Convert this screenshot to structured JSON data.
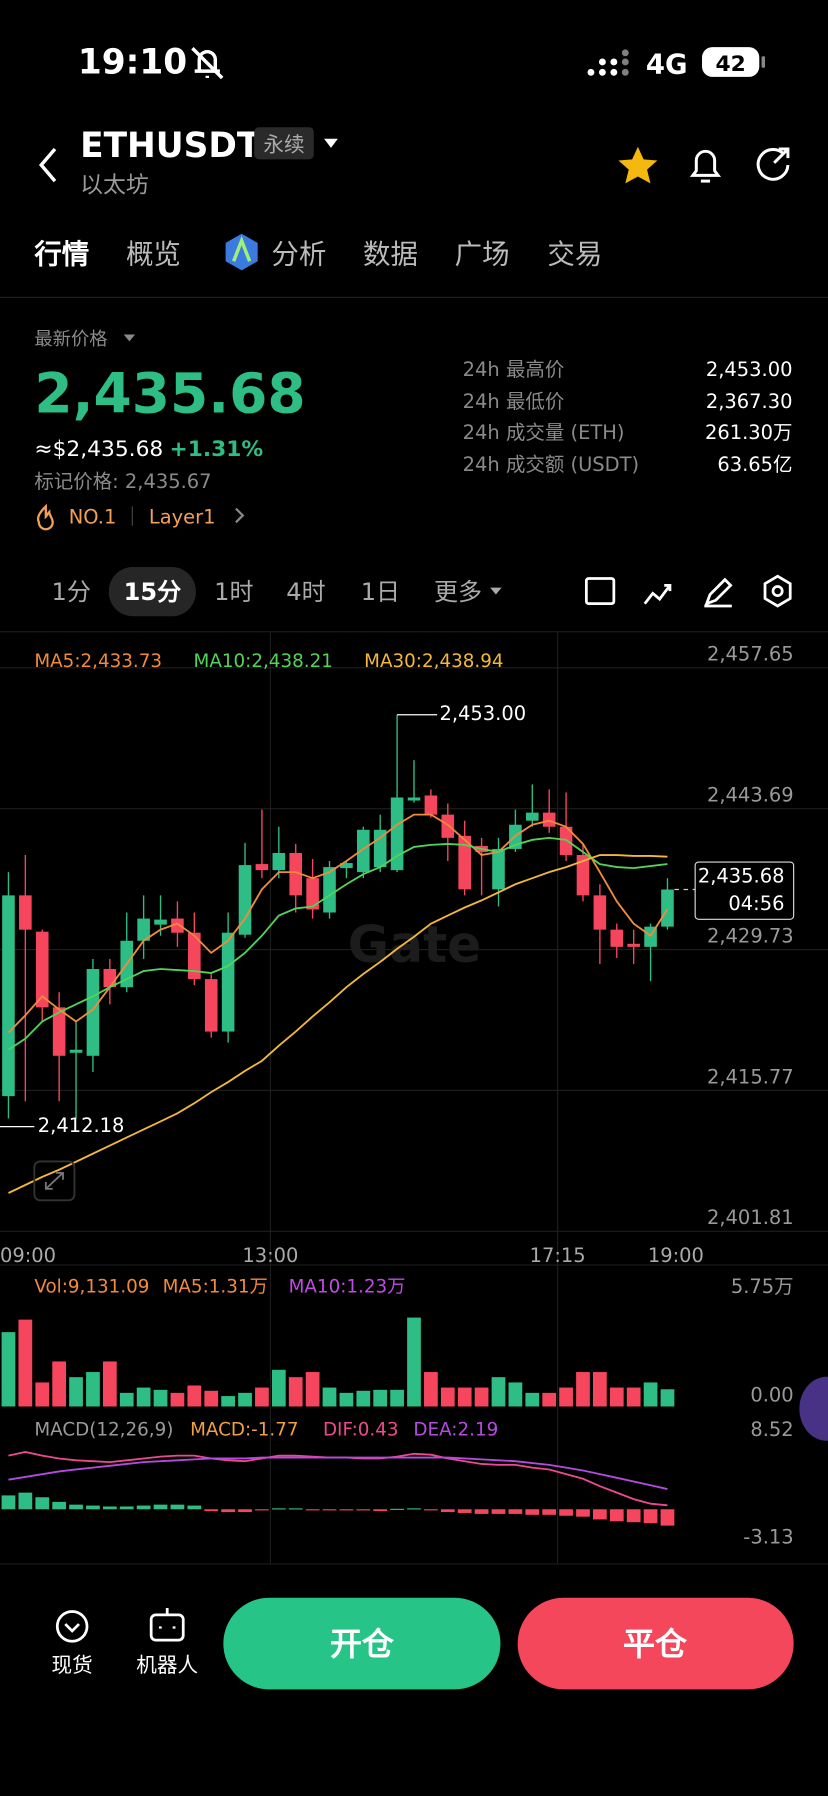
{
  "status_bar": {
    "time": "19:10",
    "network": "4G",
    "battery": "42"
  },
  "header": {
    "symbol": "ETHUSDT",
    "badge": "永续",
    "name": "以太坊"
  },
  "tabs": [
    "行情",
    "概览",
    "分析",
    "数据",
    "广场",
    "交易"
  ],
  "price_panel": {
    "label": "最新价格",
    "price": "2,435.68",
    "usd_price": "≈$2,435.68",
    "change": "+1.31%",
    "mark_price": "标记价格: 2,435.67",
    "tags": [
      "NO.1",
      "Layer1"
    ],
    "stats": [
      {
        "label": "24h 最高价",
        "value": "2,453.00"
      },
      {
        "label": "24h 最低价",
        "value": "2,367.30"
      },
      {
        "label": "24h 成交量 (ETH)",
        "value": "261.30万"
      },
      {
        "label": "24h 成交额 (USDT)",
        "value": "63.65亿"
      }
    ]
  },
  "intervals": [
    "1分",
    "15分",
    "1时",
    "4时",
    "1日",
    "更多"
  ],
  "chart_data": [
    {
      "type": "candlestick",
      "watermark": "Gate",
      "up_color": "#2ebd85",
      "down_color": "#f6465d",
      "x": [
        9.125,
        9.375,
        9.625,
        9.875,
        10.125,
        10.375,
        10.625,
        10.875,
        11.125,
        11.375,
        11.625,
        11.875,
        12.125,
        12.375,
        12.625,
        12.875,
        13.125,
        13.375,
        13.625,
        13.875,
        14.125,
        14.375,
        14.625,
        14.875,
        15.125,
        15.375,
        15.625,
        15.875,
        16.125,
        16.375,
        16.625,
        16.875,
        17.125,
        17.375,
        17.625,
        17.875,
        18.125,
        18.375,
        18.625,
        18.875
      ],
      "open": [
        2415.2,
        2435.1,
        2431.5,
        2424.0,
        2419.5,
        2419.2,
        2427.8,
        2426.0,
        2430.6,
        2432.2,
        2432.8,
        2431.4,
        2426.8,
        2421.6,
        2431.2,
        2438.2,
        2437.6,
        2439.3,
        2436.8,
        2433.4,
        2437.8,
        2437.4,
        2437.9,
        2437.6,
        2444.5,
        2445.0,
        2443.1,
        2441.0,
        2440.0,
        2435.7,
        2439.7,
        2442.5,
        2443.3,
        2441.9,
        2439.1,
        2435.1,
        2431.7,
        2430.3,
        2430.0,
        2432.0
      ],
      "high": [
        2437.4,
        2439.1,
        2431.7,
        2425.5,
        2422.6,
        2428.8,
        2428.8,
        2433.4,
        2435.1,
        2435.1,
        2434.5,
        2433.4,
        2427.3,
        2433.4,
        2440.3,
        2443.6,
        2441.9,
        2440.2,
        2438.7,
        2438.5,
        2438.5,
        2441.9,
        2443.1,
        2453.0,
        2448.5,
        2445.6,
        2444.2,
        2442.5,
        2440.8,
        2440.8,
        2443.6,
        2446.1,
        2445.6,
        2445.3,
        2440.2,
        2436.2,
        2432.3,
        2431.7,
        2432.3,
        2436.8
      ],
      "low": [
        2413.0,
        2414.7,
        2422.6,
        2414.7,
        2413.0,
        2417.6,
        2424.3,
        2425.5,
        2428.8,
        2431.1,
        2430.0,
        2426.2,
        2421.0,
        2420.5,
        2430.9,
        2436.8,
        2436.8,
        2433.4,
        2432.8,
        2432.8,
        2436.8,
        2436.8,
        2437.4,
        2437.4,
        2444.3,
        2442.8,
        2438.5,
        2435.1,
        2435.1,
        2434.0,
        2439.4,
        2441.9,
        2441.3,
        2438.5,
        2434.5,
        2428.3,
        2428.9,
        2428.3,
        2426.6,
        2431.7
      ],
      "close": [
        2435.1,
        2431.7,
        2424.0,
        2419.2,
        2419.8,
        2427.8,
        2426.0,
        2430.6,
        2432.8,
        2432.7,
        2431.4,
        2426.8,
        2421.6,
        2431.4,
        2438.1,
        2437.6,
        2439.3,
        2435.1,
        2433.7,
        2437.9,
        2438.3,
        2441.6,
        2441.6,
        2444.8,
        2444.8,
        2443.1,
        2440.8,
        2435.7,
        2439.4,
        2439.7,
        2442.1,
        2443.3,
        2441.9,
        2439.1,
        2435.1,
        2431.7,
        2430.0,
        2430.0,
        2432.0,
        2435.68
      ],
      "series": [
        {
          "name": "MA5:2,433.73",
          "color": "#f08a3c",
          "values": [
            2421.5,
            2423.2,
            2425.1,
            2423.8,
            2422.6,
            2423.8,
            2426.0,
            2428.3,
            2430.6,
            2431.7,
            2432.3,
            2431.1,
            2429.4,
            2430.6,
            2432.8,
            2435.7,
            2437.4,
            2437.4,
            2436.8,
            2437.4,
            2438.5,
            2439.7,
            2440.8,
            2442.1,
            2443.1,
            2443.1,
            2442.1,
            2440.6,
            2439.1,
            2439.4,
            2441.0,
            2442.1,
            2442.5,
            2441.9,
            2440.2,
            2437.4,
            2434.5,
            2432.3,
            2431.1,
            2433.73
          ]
        },
        {
          "name": "MA10:2,438.21",
          "color": "#52d35a",
          "values": [
            2419.8,
            2420.9,
            2422.6,
            2423.5,
            2424.3,
            2425.1,
            2426.0,
            2426.8,
            2427.6,
            2427.8,
            2427.7,
            2427.6,
            2427.4,
            2428.1,
            2429.4,
            2431.1,
            2433.1,
            2433.8,
            2434.0,
            2435.1,
            2436.2,
            2437.2,
            2437.9,
            2439.0,
            2439.9,
            2440.1,
            2440.2,
            2440.1,
            2439.7,
            2439.4,
            2440.1,
            2440.6,
            2440.8,
            2440.6,
            2439.4,
            2438.2,
            2437.9,
            2437.8,
            2438.0,
            2438.21
          ]
        },
        {
          "name": "MA30:2,438.94",
          "color": "#f3b83a",
          "values": [
            2405.6,
            2406.4,
            2407.2,
            2407.9,
            2408.7,
            2409.5,
            2410.3,
            2411.1,
            2411.9,
            2412.7,
            2413.5,
            2414.5,
            2415.6,
            2416.6,
            2417.7,
            2418.7,
            2420.2,
            2421.6,
            2423.1,
            2424.5,
            2426.0,
            2427.3,
            2428.5,
            2429.8,
            2431.0,
            2432.3,
            2433.1,
            2433.9,
            2434.6,
            2435.4,
            2436.2,
            2436.8,
            2437.4,
            2437.9,
            2438.5,
            2439.1,
            2439.1,
            2439.0,
            2439.0,
            2438.94
          ]
        }
      ],
      "xlim": [
        9,
        21.25
      ],
      "xticks": [
        {
          "value": 9,
          "label": "09:00"
        },
        {
          "value": 13,
          "label": "13:00"
        },
        {
          "value": 17.25,
          "label": "17:15"
        },
        {
          "value": 19,
          "label": "19:00"
        }
      ],
      "ylim": [
        2401.81,
        2461.17
      ],
      "yticks": [
        {
          "value": 2457.65,
          "label": "2,457.65"
        },
        {
          "value": 2443.69,
          "label": "2,443.69"
        },
        {
          "value": 2429.73,
          "label": "2,429.73"
        },
        {
          "value": 2415.77,
          "label": "2,415.77"
        },
        {
          "value": 2401.81,
          "label": "2,401.81"
        }
      ],
      "high_marker": {
        "value": 2453.0,
        "label": "2,453.00"
      },
      "low_marker": {
        "value": 2412.18,
        "label": "2,412.18"
      },
      "last_price": {
        "value": 2435.68,
        "label": "2,435.68",
        "countdown": "04:56"
      }
    },
    {
      "type": "bar",
      "legend": [
        {
          "label": "Vol:9,131.09",
          "color": "#f08a3c"
        },
        {
          "label": "MA5:1.31万",
          "color": "#f08a3c"
        },
        {
          "label": "MA10:1.23万",
          "color": "#c04be0"
        }
      ],
      "values": [
        3.93,
        4.59,
        1.27,
        2.38,
        1.55,
        1.82,
        2.38,
        0.72,
        1.0,
        0.88,
        0.72,
        1.11,
        0.83,
        0.55,
        0.72,
        1.0,
        1.94,
        1.55,
        1.82,
        1.0,
        0.72,
        0.83,
        0.88,
        0.88,
        4.7,
        1.82,
        1.0,
        1.0,
        1.0,
        1.55,
        1.27,
        0.72,
        0.72,
        1.0,
        1.82,
        1.82,
        1.0,
        1.0,
        1.27,
        0.91
      ],
      "ylim": [
        0,
        5.75
      ],
      "yticks": [
        {
          "value": 5.75,
          "label": "5.75万"
        },
        {
          "value": 0,
          "label": "0.00"
        }
      ]
    },
    {
      "type": "macd",
      "legend": [
        {
          "label": "MACD(12,26,9)",
          "color": "#9a9a9a"
        },
        {
          "label": "MACD:-1.77",
          "color": "#f0a040"
        }
      ],
      "histogram": [
        1.5,
        1.8,
        1.3,
        0.8,
        0.5,
        0.4,
        0.3,
        0.3,
        0.4,
        0.5,
        0.5,
        0.4,
        -0.2,
        -0.3,
        -0.3,
        -0.1,
        0.1,
        0.1,
        -0.1,
        -0.1,
        -0.1,
        -0.1,
        -0.2,
        0.05,
        0.1,
        -0.1,
        -0.3,
        -0.4,
        -0.5,
        -0.5,
        -0.5,
        -0.6,
        -0.6,
        -0.7,
        -0.8,
        -1.1,
        -1.3,
        -1.4,
        -1.5,
        -1.77
      ],
      "series": [
        {
          "name": "DIF:0.43",
          "color": "#ec4a8e",
          "values": [
            5.8,
            6.2,
            5.8,
            5.5,
            5.3,
            5.2,
            5.1,
            5.3,
            5.5,
            5.7,
            5.8,
            5.8,
            5.5,
            5.3,
            5.2,
            5.5,
            5.8,
            5.8,
            5.7,
            5.6,
            5.6,
            5.5,
            5.5,
            5.7,
            6.0,
            5.9,
            5.5,
            5.2,
            4.9,
            4.8,
            4.8,
            4.5,
            4.3,
            3.8,
            3.3,
            2.5,
            1.8,
            1.1,
            0.6,
            0.43
          ]
        },
        {
          "name": "DEA:2.19",
          "color": "#b44be0",
          "values": [
            3.2,
            3.5,
            3.8,
            4.1,
            4.3,
            4.5,
            4.7,
            4.9,
            5.1,
            5.2,
            5.3,
            5.4,
            5.5,
            5.5,
            5.5,
            5.6,
            5.6,
            5.6,
            5.6,
            5.6,
            5.6,
            5.6,
            5.6,
            5.6,
            5.6,
            5.6,
            5.6,
            5.5,
            5.4,
            5.3,
            5.2,
            5.0,
            4.8,
            4.5,
            4.2,
            3.8,
            3.4,
            3.0,
            2.6,
            2.19
          ]
        }
      ],
      "ylim": [
        -3.13,
        8.52
      ],
      "yticks": [
        8.52,
        -3.13
      ]
    }
  ],
  "actions": {
    "nav": [
      "现货",
      "机器人"
    ],
    "open": "开仓",
    "close": "平仓"
  }
}
